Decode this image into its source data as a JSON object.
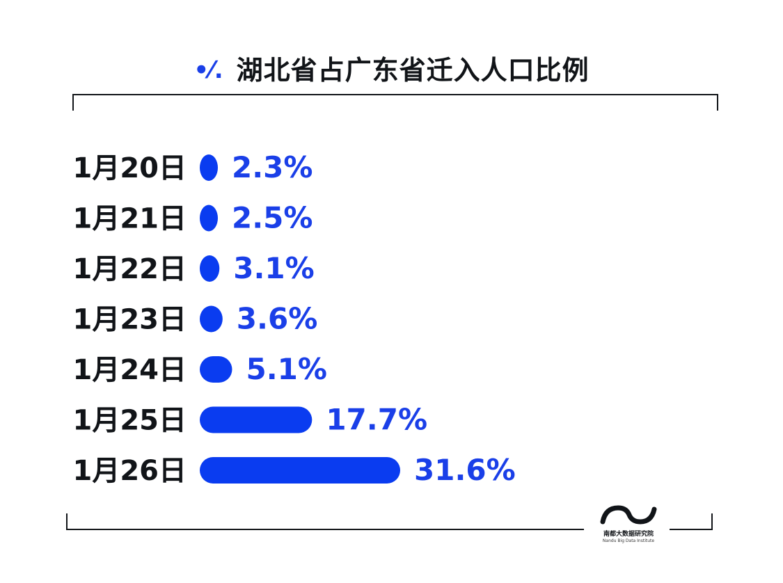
{
  "title": "湖北省占广东省迁入人口比例",
  "title_icon": "percent-icon",
  "colors": {
    "bar": "#0a3cf0",
    "value_text": "#1a3fe8",
    "category_text": "#111418"
  },
  "chart_data": {
    "type": "bar",
    "orientation": "horizontal",
    "title": "湖北省占广东省迁入人口比例",
    "categories": [
      "1月20日",
      "1月21日",
      "1月22日",
      "1月23日",
      "1月24日",
      "1月25日",
      "1月26日"
    ],
    "values": [
      2.3,
      2.5,
      3.1,
      3.6,
      5.1,
      17.7,
      31.6
    ],
    "value_labels": [
      "2.3%",
      "2.5%",
      "3.1%",
      "3.6%",
      "5.1%",
      "17.7%",
      "31.6%"
    ],
    "unit": "%",
    "xlim": [
      0,
      31.6
    ],
    "grid": false,
    "legend": "none"
  },
  "logo": {
    "name": "南都大数据研究院",
    "subtitle": "Nandu Big Data Institute"
  }
}
